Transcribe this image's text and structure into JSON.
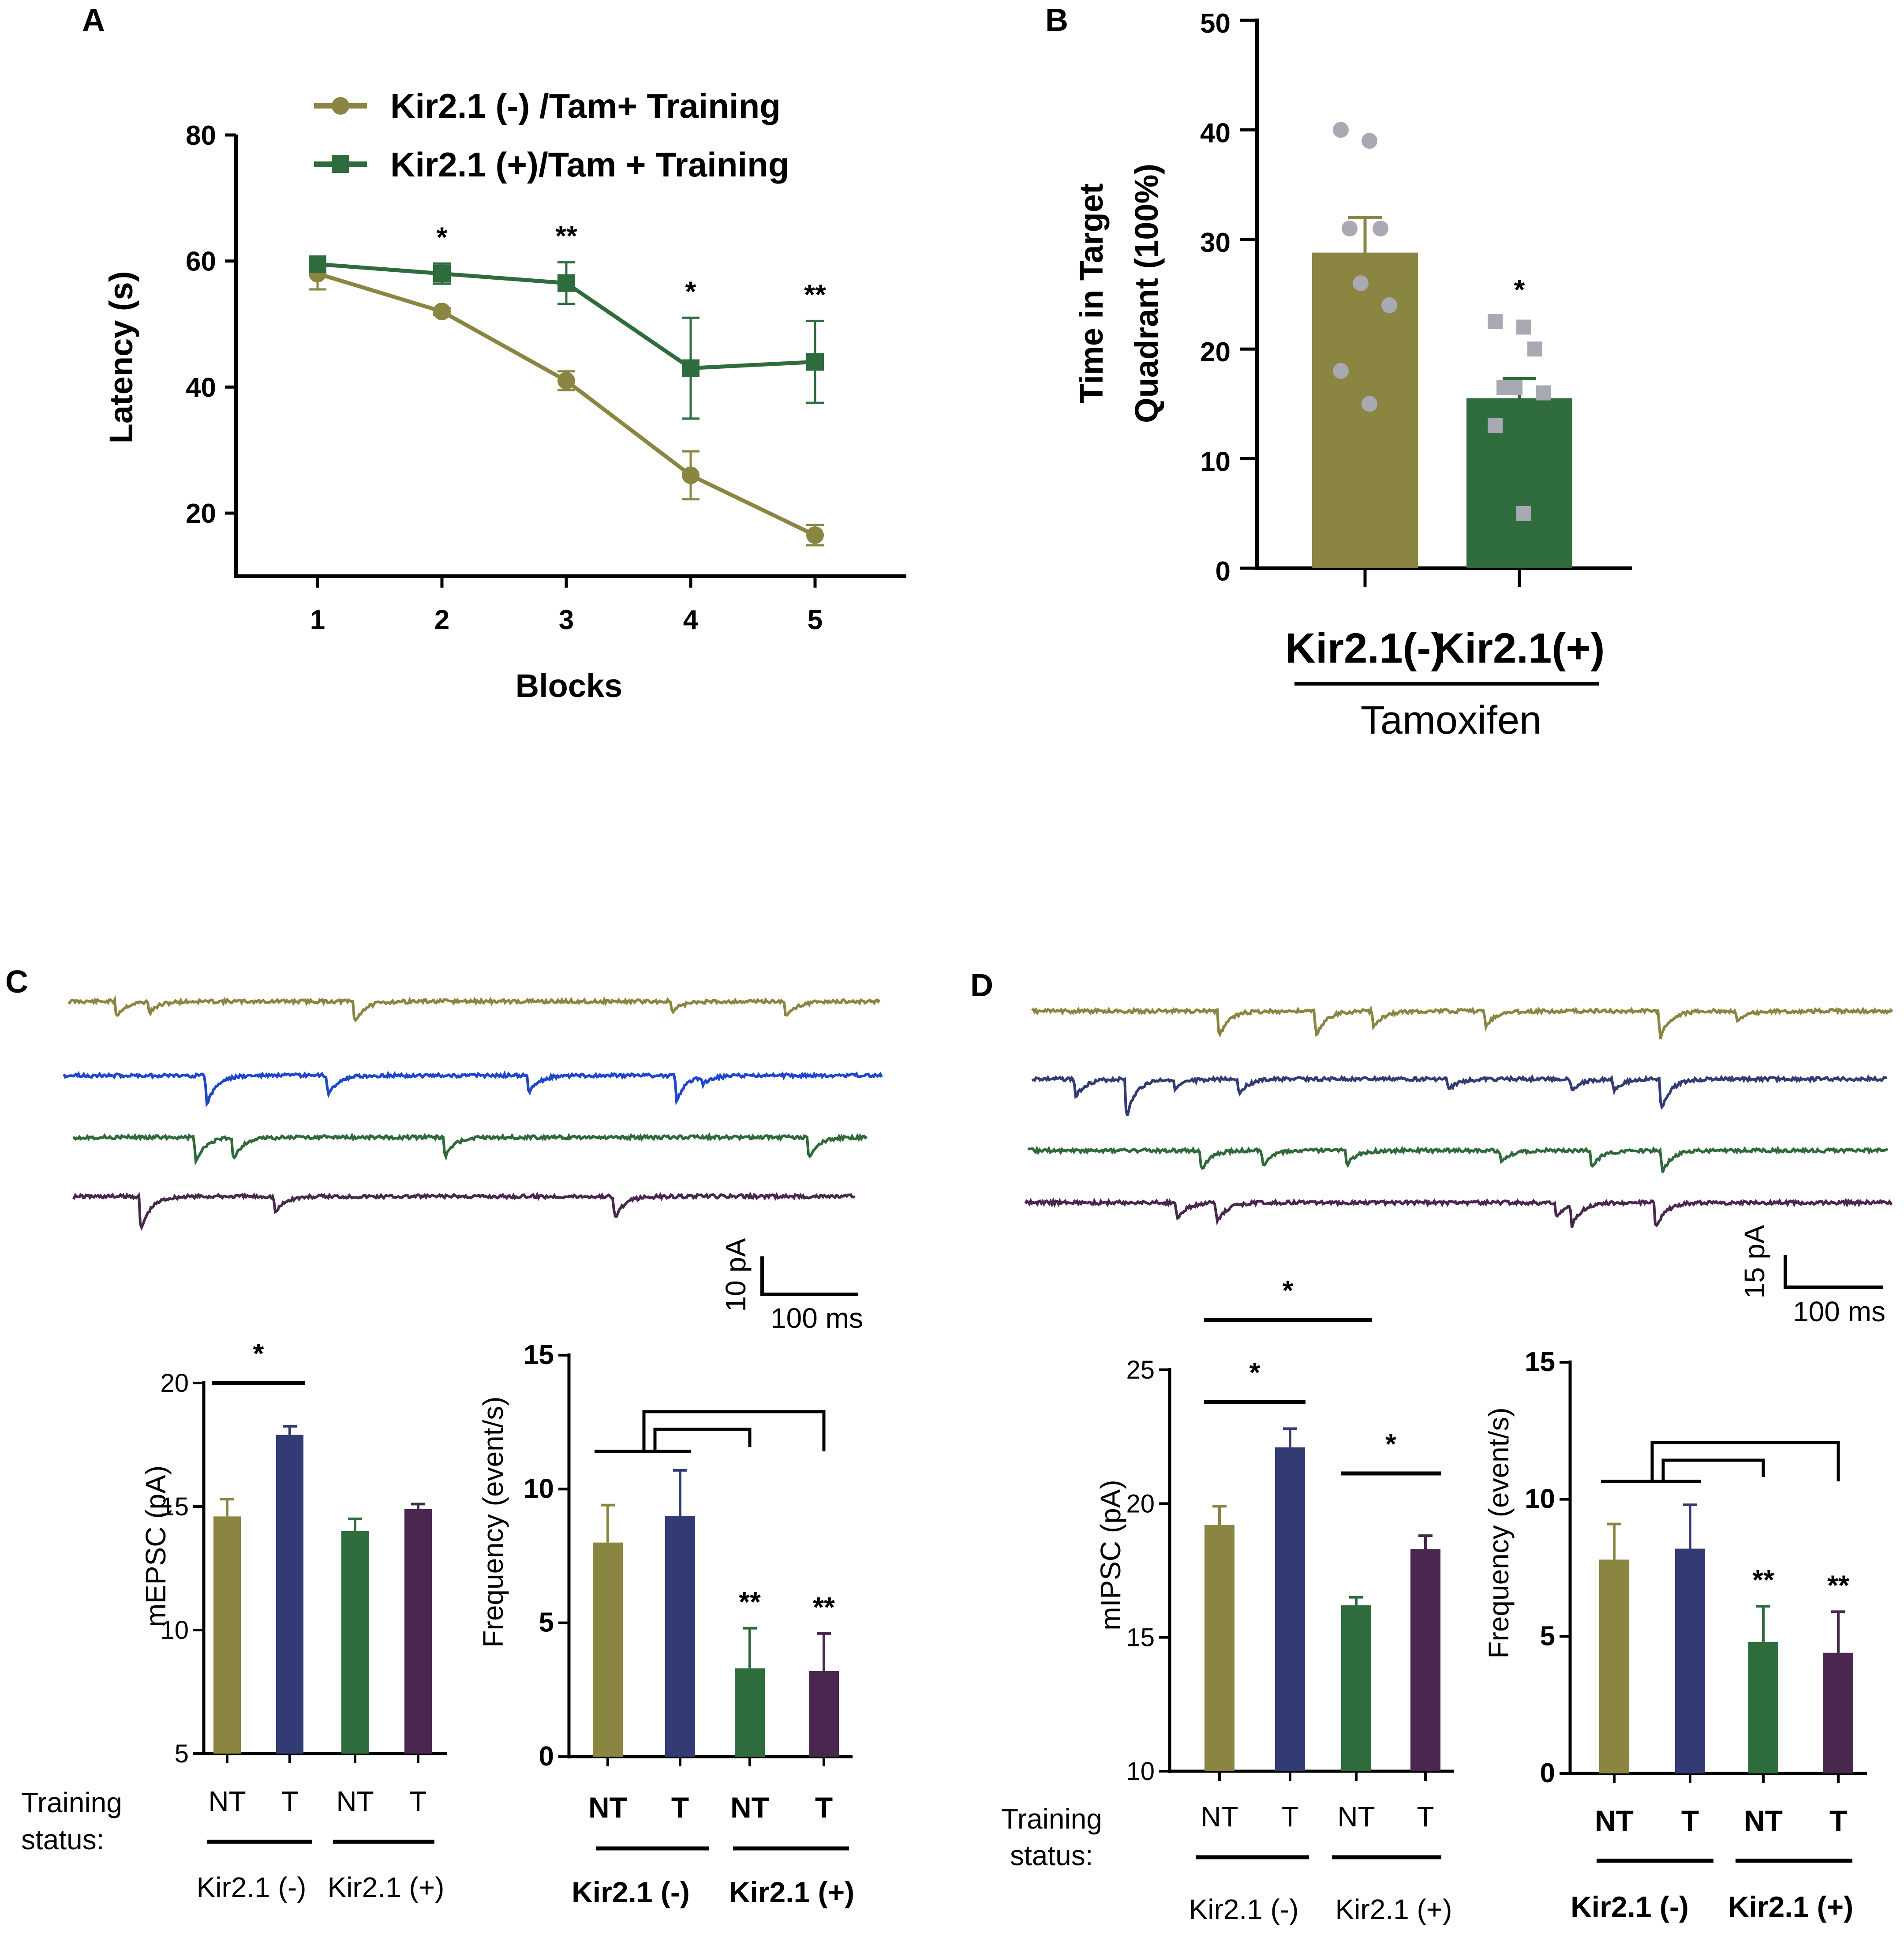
{
  "colors": {
    "olive": "#8a8540",
    "dark_green": "#2e6b3d",
    "navy": "#323b73",
    "purple": "#49274f",
    "blue_trace": "#1f48c8",
    "green_trace": "#2f6a3a",
    "grey_dot": "#a9a9b4"
  },
  "panel_labels": {
    "a": "A",
    "b": "B",
    "c": "C",
    "d": "D"
  },
  "chart_data": [
    {
      "id": "A",
      "type": "line",
      "title": "",
      "xlabel": "Blocks",
      "ylabel": "Latency (s)",
      "x": [
        1,
        2,
        3,
        4,
        5
      ],
      "ylim": [
        10,
        80
      ],
      "yticks": [
        20,
        40,
        60,
        80
      ],
      "series": [
        {
          "name": "Kir2.1 (-) /Tam+ Training",
          "marker": "circle",
          "color": "#8a8540",
          "values": [
            58,
            52,
            41,
            26,
            16.5
          ],
          "errors": [
            2.5,
            0.5,
            1.5,
            3.8,
            1.6
          ]
        },
        {
          "name": "Kir2.1 (+)/Tam + Training",
          "marker": "square",
          "color": "#2e6b3d",
          "values": [
            59.5,
            58,
            56.5,
            43,
            44
          ],
          "errors": [
            1.0,
            1.6,
            3.3,
            8,
            6.5
          ]
        }
      ],
      "significance": [
        {
          "x": 2,
          "label": "*"
        },
        {
          "x": 3,
          "label": "**"
        },
        {
          "x": 4,
          "label": "*"
        },
        {
          "x": 5,
          "label": "**"
        }
      ]
    },
    {
      "id": "B",
      "type": "bar",
      "title": "",
      "ylabel_line1": "Time in Target",
      "ylabel_line2": "Quadrant (100%)",
      "categories": [
        "Kir2.1(-)",
        "Kir2.1(+)"
      ],
      "group_label": "Tamoxifen",
      "values": [
        28.8,
        15.5
      ],
      "errors": [
        3.2,
        1.8
      ],
      "ylim": [
        0,
        50
      ],
      "yticks": [
        0,
        10,
        20,
        30,
        40,
        50
      ],
      "colors": [
        "#8a8540",
        "#2e6b3d"
      ],
      "points": [
        [
          40,
          39,
          31,
          31,
          26,
          24,
          18,
          15
        ],
        [
          22.5,
          22,
          20,
          16.5,
          16.5,
          16,
          13,
          5
        ]
      ],
      "significance": [
        {
          "bar": 1,
          "label": "*"
        }
      ]
    },
    {
      "id": "C-mEPSC",
      "type": "bar",
      "ylabel": "mEPSC (pA)",
      "categories": [
        "NT",
        "T",
        "NT",
        "T"
      ],
      "values": [
        14.6,
        17.9,
        14.0,
        14.9
      ],
      "errors": [
        0.7,
        0.35,
        0.5,
        0.2
      ],
      "ylim": [
        5,
        20
      ],
      "yticks": [
        5,
        10,
        15,
        20
      ],
      "colors": [
        "#8a8540",
        "#323b73",
        "#2e6b3d",
        "#49274f"
      ],
      "row_label_line1": "Training",
      "row_label_line2": "status:",
      "groups": [
        "Kir2.1 (-)",
        "Kir2.1 (+)"
      ],
      "significance": [
        {
          "from": 0,
          "to": 1,
          "label": "*"
        }
      ]
    },
    {
      "id": "C-frequency",
      "type": "bar",
      "ylabel": "Frequency (event/s)",
      "categories": [
        "NT",
        "T",
        "NT",
        "T"
      ],
      "values": [
        8.0,
        9.0,
        3.3,
        3.2
      ],
      "errors": [
        1.4,
        1.7,
        1.5,
        1.4
      ],
      "ylim": [
        0,
        15
      ],
      "yticks": [
        0,
        5,
        10,
        15
      ],
      "colors": [
        "#8a8540",
        "#323b73",
        "#2e6b3d",
        "#49274f"
      ],
      "groups": [
        "Kir2.1 (-)",
        "Kir2.1 (+)"
      ],
      "significance": [
        {
          "bar": 2,
          "label": "**"
        },
        {
          "bar": 3,
          "label": "**"
        }
      ]
    },
    {
      "id": "D-mIPSC",
      "type": "bar",
      "ylabel": "mIPSC (pA)",
      "categories": [
        "NT",
        "T",
        "NT",
        "T"
      ],
      "values": [
        19.2,
        22.1,
        16.2,
        18.3
      ],
      "errors": [
        0.7,
        0.7,
        0.3,
        0.5
      ],
      "ylim": [
        10,
        25
      ],
      "yticks": [
        10,
        15,
        20,
        25
      ],
      "colors": [
        "#8a8540",
        "#323b73",
        "#2e6b3d",
        "#49274f"
      ],
      "row_label_line1": "Training",
      "row_label_line2": "status:",
      "groups": [
        "Kir2.1 (-)",
        "Kir2.1 (+)"
      ],
      "significance": [
        {
          "from": 0,
          "to": 1,
          "label": "*"
        },
        {
          "from": 2,
          "to": 3,
          "label": "*"
        },
        {
          "from": 0,
          "to": 2,
          "label": "*"
        }
      ]
    },
    {
      "id": "D-frequency",
      "type": "bar",
      "ylabel": "Frequency (event/s)",
      "categories": [
        "NT",
        "T",
        "NT",
        "T"
      ],
      "values": [
        7.8,
        8.2,
        4.8,
        4.4
      ],
      "errors": [
        1.3,
        1.6,
        1.3,
        1.5
      ],
      "ylim": [
        0,
        15
      ],
      "yticks": [
        0,
        5,
        10,
        15
      ],
      "colors": [
        "#8a8540",
        "#323b73",
        "#2e6b3d",
        "#49274f"
      ],
      "groups": [
        "Kir2.1 (-)",
        "Kir2.1 (+)"
      ],
      "significance": [
        {
          "bar": 2,
          "label": "**"
        },
        {
          "bar": 3,
          "label": "**"
        }
      ]
    }
  ],
  "traces": {
    "c_scale": {
      "amplitude": "10 pA",
      "time": "100 ms"
    },
    "d_scale": {
      "amplitude": "15 pA",
      "time": "100 ms"
    }
  }
}
